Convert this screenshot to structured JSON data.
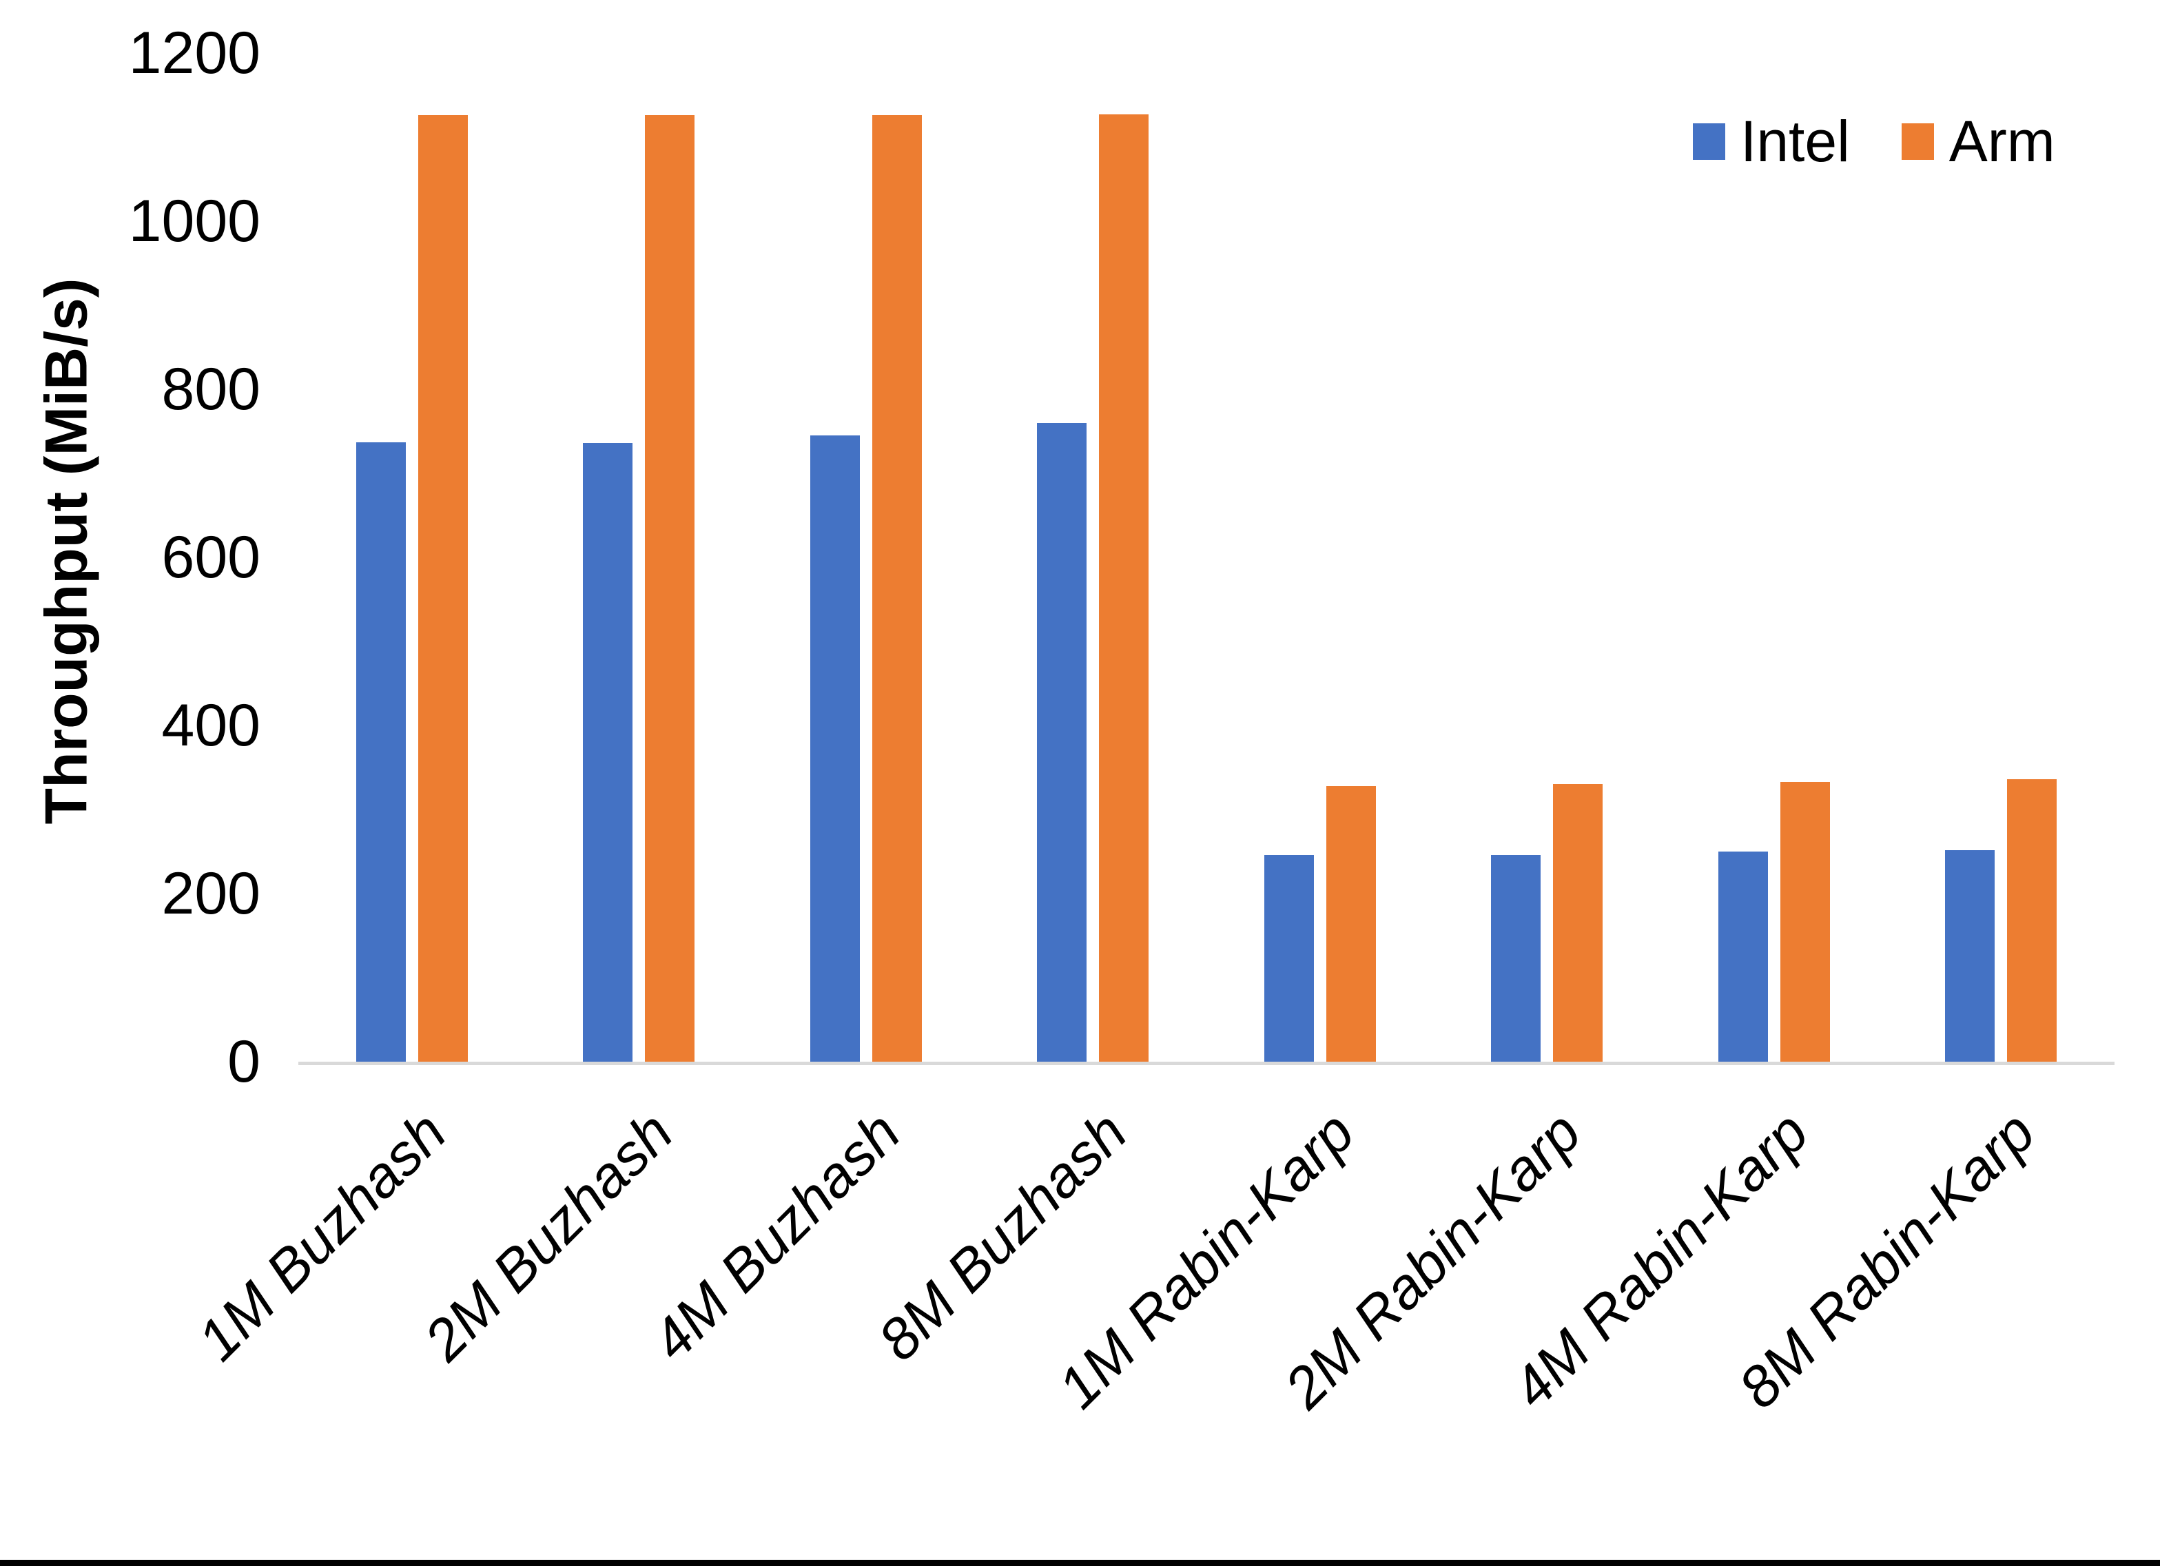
{
  "chart_data": {
    "type": "bar",
    "title": "",
    "ylabel": "Throughput (MiB/s)",
    "xlabel": "",
    "ylim": [
      0,
      1200
    ],
    "yticks": [
      0,
      200,
      400,
      600,
      800,
      1000,
      1200
    ],
    "grid": false,
    "legend_position": "top-right",
    "axis_line_color": "#D9D9D9",
    "text_color": "#000000",
    "categories": [
      "1M Buzhash",
      "2M Buzhash",
      "4M Buzhash",
      "8M Buzhash",
      "1M Rabin-Karp",
      "2M Rabin-Karp",
      "4M Rabin-Karp",
      "8M Rabin-Karp"
    ],
    "series": [
      {
        "name": "Intel",
        "color": "#4472C4",
        "values": [
          737,
          736,
          745,
          760,
          246,
          246,
          250,
          252
        ]
      },
      {
        "name": "Arm",
        "color": "#ED7D31",
        "values": [
          1126,
          1126,
          1126,
          1127,
          328,
          330,
          333,
          336
        ]
      }
    ]
  }
}
